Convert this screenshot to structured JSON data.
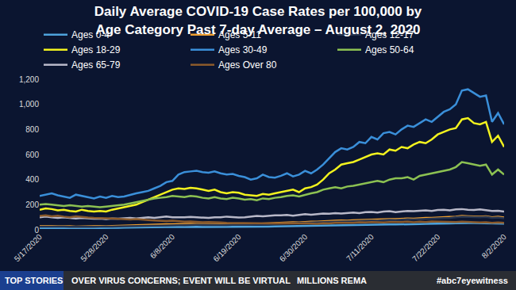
{
  "chart_data": {
    "type": "line",
    "title": "Daily Average COVID-19 Case Rates per 100,000 by\nAge Category Past 7-day Average – August 2, 2020",
    "categories": [
      "5/17/2020",
      null,
      null,
      null,
      null,
      null,
      null,
      null,
      null,
      null,
      null,
      "5/28/2020",
      null,
      null,
      null,
      null,
      null,
      null,
      null,
      null,
      null,
      null,
      "6/8/2020",
      null,
      null,
      null,
      null,
      null,
      null,
      null,
      null,
      null,
      null,
      "6/19/2020",
      null,
      null,
      null,
      null,
      null,
      null,
      null,
      null,
      null,
      null,
      "6/30/2020",
      null,
      null,
      null,
      null,
      null,
      null,
      null,
      null,
      null,
      null,
      "7/11/2020",
      null,
      null,
      null,
      null,
      null,
      null,
      null,
      null,
      null,
      null,
      "7/22/2020",
      null,
      null,
      null,
      null,
      null,
      null,
      null,
      null,
      null,
      null,
      "8/2/2020"
    ],
    "series": [
      {
        "name": "Ages 0-4",
        "color": "#4ea3dc",
        "values": [
          15,
          16,
          15,
          14,
          15,
          14,
          13,
          14,
          15,
          14,
          15,
          14,
          15,
          16,
          17,
          18,
          19,
          20,
          21,
          20,
          21,
          22,
          22,
          23,
          22,
          24,
          23,
          22,
          22,
          23,
          22,
          22,
          23,
          22,
          22,
          23,
          24,
          25,
          26,
          27,
          28,
          29,
          30,
          29,
          31,
          32,
          32,
          34,
          35,
          36,
          37,
          36,
          38,
          39,
          40,
          41,
          40,
          42,
          43,
          42,
          44,
          45,
          44,
          46,
          47,
          47,
          49,
          50,
          51,
          52,
          55,
          54,
          53,
          52,
          54,
          50,
          52,
          49
        ]
      },
      {
        "name": "Ages 5-11",
        "color": "#f0a030",
        "values": [
          30,
          32,
          30,
          28,
          30,
          28,
          26,
          28,
          30,
          28,
          30,
          28,
          30,
          32,
          34,
          35,
          38,
          40,
          42,
          40,
          42,
          45,
          44,
          46,
          45,
          48,
          46,
          45,
          44,
          46,
          45,
          44,
          46,
          45,
          44,
          46,
          48,
          50,
          52,
          55,
          55,
          58,
          60,
          58,
          62,
          65,
          64,
          68,
          70,
          72,
          74,
          72,
          76,
          78,
          80,
          82,
          80,
          84,
          86,
          85,
          88,
          90,
          88,
          92,
          95,
          94,
          98,
          100,
          102,
          105,
          110,
          108,
          106,
          105,
          108,
          100,
          104,
          98
        ]
      },
      {
        "name": "Ages 12-17",
        "color": "#26344f",
        "values": [
          25,
          26,
          25,
          24,
          25,
          24,
          23,
          24,
          25,
          24,
          25,
          24,
          26,
          27,
          28,
          30,
          32,
          34,
          36,
          35,
          37,
          38,
          38,
          40,
          39,
          41,
          40,
          39,
          38,
          40,
          39,
          38,
          40,
          39,
          38,
          40,
          42,
          44,
          46,
          48,
          50,
          52,
          54,
          53,
          56,
          58,
          58,
          61,
          63,
          65,
          67,
          66,
          69,
          71,
          73,
          75,
          73,
          77,
          79,
          78,
          81,
          83,
          82,
          85,
          88,
          87,
          91,
          93,
          95,
          98,
          104,
          102,
          100,
          99,
          102,
          95,
          98,
          92
        ]
      },
      {
        "name": "Ages 18-29",
        "color": "#f2f21e",
        "values": [
          160,
          170,
          165,
          155,
          160,
          150,
          145,
          160,
          150,
          145,
          150,
          145,
          160,
          170,
          180,
          190,
          200,
          220,
          240,
          260,
          280,
          300,
          320,
          330,
          325,
          335,
          330,
          320,
          310,
          320,
          300,
          290,
          300,
          295,
          280,
          275,
          270,
          285,
          280,
          290,
          300,
          310,
          320,
          300,
          330,
          340,
          360,
          400,
          450,
          480,
          520,
          530,
          540,
          560,
          580,
          600,
          610,
          600,
          640,
          630,
          660,
          650,
          680,
          700,
          690,
          720,
          760,
          780,
          800,
          810,
          880,
          890,
          850,
          840,
          860,
          700,
          750,
          660
        ]
      },
      {
        "name": "Ages 30-49",
        "color": "#3a8fd9",
        "values": [
          270,
          280,
          290,
          275,
          265,
          255,
          280,
          270,
          260,
          250,
          265,
          255,
          270,
          260,
          265,
          280,
          290,
          300,
          310,
          330,
          350,
          380,
          390,
          440,
          460,
          465,
          470,
          460,
          455,
          465,
          450,
          440,
          445,
          430,
          420,
          400,
          410,
          440,
          420,
          415,
          430,
          450,
          425,
          440,
          470,
          450,
          480,
          520,
          570,
          620,
          650,
          640,
          660,
          700,
          690,
          740,
          720,
          770,
          780,
          760,
          800,
          830,
          820,
          850,
          880,
          860,
          900,
          940,
          960,
          1000,
          1110,
          1120,
          1090,
          1060,
          1070,
          860,
          930,
          840
        ]
      },
      {
        "name": "Ages 50-64",
        "color": "#8cc152",
        "values": [
          200,
          205,
          200,
          195,
          190,
          195,
          190,
          185,
          190,
          185,
          180,
          185,
          190,
          195,
          200,
          210,
          220,
          230,
          240,
          250,
          255,
          260,
          270,
          265,
          260,
          270,
          265,
          255,
          250,
          260,
          250,
          245,
          255,
          250,
          240,
          245,
          235,
          250,
          245,
          255,
          260,
          270,
          275,
          265,
          280,
          290,
          300,
          320,
          330,
          340,
          330,
          345,
          350,
          360,
          370,
          380,
          390,
          380,
          400,
          410,
          410,
          420,
          400,
          430,
          440,
          450,
          460,
          470,
          480,
          500,
          540,
          530,
          520,
          510,
          520,
          440,
          480,
          440
        ]
      },
      {
        "name": "Ages 65-79",
        "color": "#b8b8c8",
        "values": [
          100,
          105,
          100,
          95,
          100,
          95,
          90,
          95,
          90,
          88,
          90,
          85,
          90,
          88,
          92,
          95,
          90,
          95,
          100,
          95,
          100,
          105,
          100,
          98,
          100,
          102,
          100,
          98,
          95,
          100,
          100,
          105,
          102,
          98,
          100,
          105,
          110,
          108,
          112,
          115,
          115,
          118,
          112,
          120,
          125,
          120,
          125,
          130,
          128,
          132,
          130,
          135,
          138,
          132,
          140,
          142,
          138,
          145,
          148,
          140,
          145,
          150,
          148,
          152,
          155,
          150,
          158,
          160,
          155,
          162,
          165,
          160,
          158,
          162,
          155,
          150,
          152,
          145
        ]
      },
      {
        "name": "Ages Over 80",
        "color": "#8b5a2b",
        "values": [
          110,
          115,
          108,
          112,
          105,
          100,
          108,
          102,
          98,
          95,
          95,
          92,
          90,
          88,
          85,
          82,
          85,
          80,
          78,
          75,
          72,
          70,
          72,
          68,
          65,
          66,
          62,
          60,
          62,
          58,
          58,
          56,
          55,
          58,
          55,
          52,
          54,
          50,
          52,
          50,
          52,
          50,
          48,
          50,
          52,
          50,
          48,
          52,
          50,
          55,
          55,
          58,
          56,
          60,
          58,
          62,
          60,
          58,
          62,
          60,
          62,
          65,
          60,
          64,
          62,
          66,
          64,
          62,
          60,
          62,
          65,
          62,
          60,
          58,
          60,
          55,
          58,
          55
        ]
      }
    ],
    "ylim": [
      0,
      1200
    ],
    "yticks": [
      0,
      200,
      400,
      600,
      800,
      {
        "value": 1000,
        "label": "1,000"
      },
      {
        "value": 1200,
        "label": "1,200"
      }
    ],
    "grid": false,
    "legend": "top",
    "annotations": [
      "TOP STORIES",
      "OVER VIRUS CONCERNS; EVENT WILL BE VIRTUAL",
      "MILLIONS REMA",
      "#abc7eyewitness"
    ]
  }
}
